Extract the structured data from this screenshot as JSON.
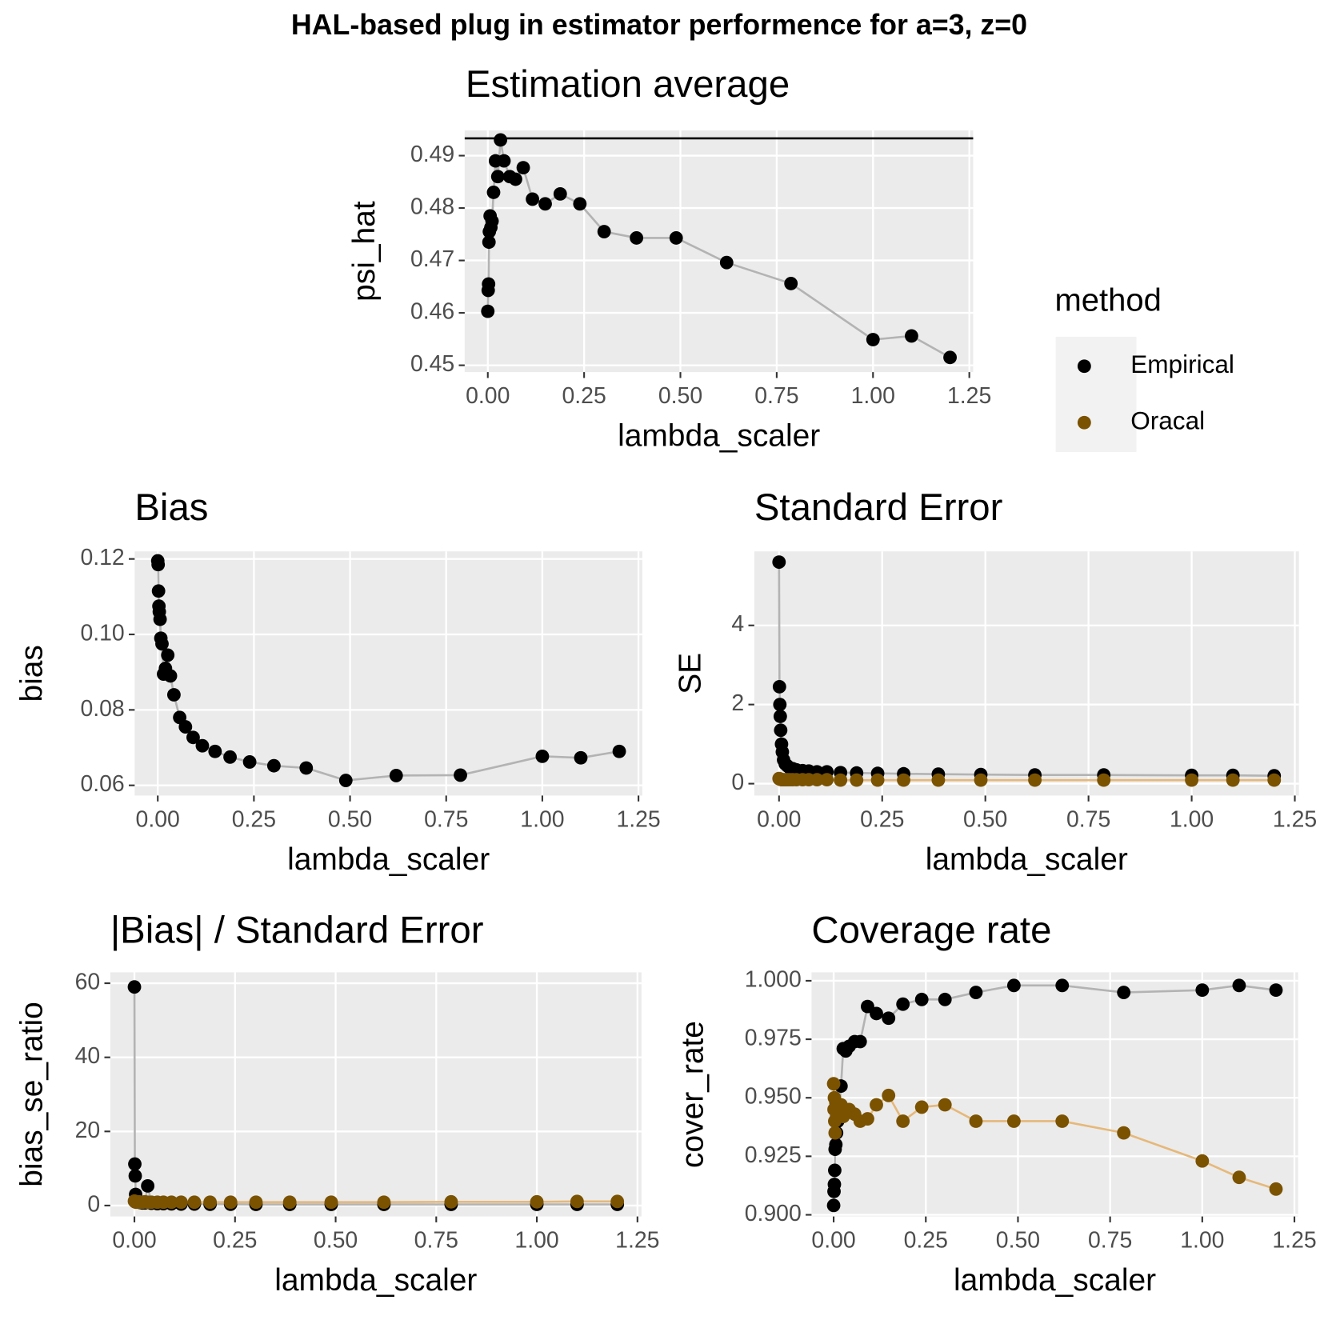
{
  "title": "HAL-based plug in estimator performence for a=3, z=0",
  "legend_title": "method",
  "chart_data": [
    {
      "type": "line",
      "title": "Estimation average",
      "x_label": "lambda_scaler",
      "y_label": "psi_hat",
      "x": [
        0,
        0.001,
        0.002,
        0.003,
        0.004,
        0.006,
        0.008,
        0.011,
        0.015,
        0.02,
        0.026,
        0.033,
        0.042,
        0.057,
        0.072,
        0.092,
        0.116,
        0.149,
        0.188,
        0.239,
        0.302,
        0.386,
        0.489,
        0.62,
        0.787,
        1.0,
        1.1,
        1.2
      ],
      "series": [
        {
          "name": "Empirical",
          "color": "#000000",
          "line_color": "#b3b3b3",
          "values": [
            0.4603,
            0.4643,
            0.4655,
            0.4735,
            0.4755,
            0.4785,
            0.4763,
            0.4775,
            0.483,
            0.489,
            0.486,
            0.493,
            0.489,
            0.486,
            0.4855,
            0.4877,
            0.4817,
            0.4808,
            0.4827,
            0.4808,
            0.4755,
            0.4743,
            0.4743,
            0.4696,
            0.4656,
            0.4549,
            0.4556,
            0.4515
          ]
        }
      ],
      "hline": 0.4933,
      "hline_color": "#000000",
      "xlim": [
        -0.06,
        1.26
      ],
      "ylim": [
        0.4487,
        0.4948
      ],
      "xticks": [
        {
          "value": 0,
          "label": "0.00"
        },
        0.25,
        {
          "value": 0.5,
          "label": "0.50"
        },
        0.75,
        {
          "value": 1,
          "label": "1.00"
        },
        1.25
      ],
      "yticks": [
        0.45,
        0.46,
        0.47,
        0.48,
        0.49
      ],
      "grid": true
    },
    {
      "type": "line",
      "title": "Bias",
      "x_label": "lambda_scaler",
      "y_label": "bias",
      "x": [
        0,
        0.001,
        0.002,
        0.003,
        0.004,
        0.006,
        0.008,
        0.011,
        0.015,
        0.02,
        0.026,
        0.033,
        0.042,
        0.057,
        0.072,
        0.092,
        0.116,
        0.149,
        0.188,
        0.239,
        0.302,
        0.386,
        0.489,
        0.62,
        0.787,
        1.0,
        1.1,
        1.2
      ],
      "series": [
        {
          "name": "Empirical",
          "color": "#000000",
          "line_color": "#b3b3b3",
          "values": [
            0.1195,
            0.1185,
            0.1115,
            0.1075,
            0.106,
            0.104,
            0.099,
            0.0975,
            0.0895,
            0.091,
            0.0945,
            0.089,
            0.084,
            0.078,
            0.0755,
            0.0727,
            0.0705,
            0.069,
            0.0675,
            0.0662,
            0.0652,
            0.0646,
            0.0613,
            0.0626,
            0.0627,
            0.0677,
            0.0673,
            0.069
          ]
        }
      ],
      "xlim": [
        -0.06,
        1.26
      ],
      "ylim": [
        0.0573,
        0.122
      ],
      "xticks": [
        {
          "value": 0,
          "label": "0.00"
        },
        0.25,
        {
          "value": 0.5,
          "label": "0.50"
        },
        0.75,
        {
          "value": 1,
          "label": "1.00"
        },
        1.25
      ],
      "yticks": [
        0.06,
        0.08,
        {
          "value": 0.1,
          "label": "0.10"
        },
        0.12
      ],
      "grid": true
    },
    {
      "type": "line",
      "title": "Standard Error",
      "x_label": "lambda_scaler",
      "y_label": "SE",
      "x": [
        0,
        0.001,
        0.002,
        0.003,
        0.004,
        0.006,
        0.008,
        0.011,
        0.015,
        0.02,
        0.026,
        0.033,
        0.042,
        0.057,
        0.072,
        0.092,
        0.116,
        0.149,
        0.188,
        0.239,
        0.302,
        0.386,
        0.489,
        0.62,
        0.787,
        1.0,
        1.1,
        1.2
      ],
      "series": [
        {
          "name": "Empirical",
          "color": "#000000",
          "line_color": "#b3b3b3",
          "values": [
            5.6,
            2.45,
            2.0,
            1.7,
            1.35,
            1.0,
            0.8,
            0.6,
            0.5,
            0.45,
            0.4,
            0.38,
            0.35,
            0.33,
            0.32,
            0.3,
            0.3,
            0.28,
            0.27,
            0.26,
            0.25,
            0.24,
            0.23,
            0.22,
            0.22,
            0.21,
            0.21,
            0.2
          ]
        },
        {
          "name": "Oracal",
          "color": "#7a5200",
          "line_color": "#e6b87a",
          "values": [
            0.13,
            0.12,
            0.12,
            0.11,
            0.11,
            0.1,
            0.1,
            0.1,
            0.1,
            0.1,
            0.1,
            0.1,
            0.1,
            0.1,
            0.1,
            0.1,
            0.1,
            0.09,
            0.09,
            0.09,
            0.09,
            0.09,
            0.09,
            0.09,
            0.09,
            0.09,
            0.09,
            0.09
          ]
        }
      ],
      "xlim": [
        -0.06,
        1.26
      ],
      "ylim": [
        -0.3,
        5.87
      ],
      "xticks": [
        {
          "value": 0,
          "label": "0.00"
        },
        0.25,
        {
          "value": 0.5,
          "label": "0.50"
        },
        0.75,
        {
          "value": 1,
          "label": "1.00"
        },
        1.25
      ],
      "yticks": [
        0,
        2,
        4
      ],
      "grid": true
    },
    {
      "type": "line",
      "title": "|Bias| / Standard Error",
      "x_label": "lambda_scaler",
      "y_label": "bias_se_ratio",
      "x": [
        0,
        0.001,
        0.002,
        0.003,
        0.004,
        0.006,
        0.008,
        0.011,
        0.015,
        0.02,
        0.026,
        0.033,
        0.042,
        0.057,
        0.072,
        0.092,
        0.116,
        0.149,
        0.188,
        0.239,
        0.302,
        0.386,
        0.489,
        0.62,
        0.787,
        1.0,
        1.1,
        1.2
      ],
      "series": [
        {
          "name": "Empirical",
          "color": "#000000",
          "line_color": "#b3b3b3",
          "values": [
            59,
            11.2,
            8,
            3,
            1.8,
            1.2,
            1.0,
            0.9,
            0.8,
            0.7,
            0.7,
            5.3,
            0.6,
            0.5,
            0.5,
            0.45,
            0.4,
            0.4,
            0.35,
            0.35,
            0.3,
            0.3,
            0.3,
            0.3,
            0.3,
            0.3,
            0.3,
            0.3
          ]
        },
        {
          "name": "Oracal",
          "color": "#7a5200",
          "line_color": "#e6b87a",
          "values": [
            1.2,
            1.1,
            1.0,
            1.0,
            0.9,
            1.0,
            0.9,
            1.0,
            0.9,
            0.9,
            1.0,
            0.9,
            0.9,
            0.9,
            0.9,
            0.9,
            0.9,
            0.9,
            0.9,
            0.9,
            0.9,
            0.9,
            0.9,
            0.9,
            1.0,
            1.0,
            1.1,
            1.1
          ]
        }
      ],
      "xlim": [
        -0.06,
        1.26
      ],
      "ylim": [
        -2.95,
        62.95
      ],
      "xticks": [
        {
          "value": 0,
          "label": "0.00"
        },
        0.25,
        {
          "value": 0.5,
          "label": "0.50"
        },
        0.75,
        {
          "value": 1,
          "label": "1.00"
        },
        1.25
      ],
      "yticks": [
        0,
        20,
        40,
        60
      ],
      "grid": true
    },
    {
      "type": "line",
      "title": "Coverage rate",
      "x_label": "lambda_scaler",
      "y_label": "cover_rate",
      "x": [
        0,
        0.001,
        0.002,
        0.003,
        0.004,
        0.006,
        0.008,
        0.011,
        0.015,
        0.02,
        0.026,
        0.033,
        0.042,
        0.057,
        0.072,
        0.092,
        0.116,
        0.149,
        0.188,
        0.239,
        0.302,
        0.386,
        0.489,
        0.62,
        0.787,
        1.0,
        1.1,
        1.2
      ],
      "series": [
        {
          "name": "Empirical",
          "color": "#000000",
          "line_color": "#b3b3b3",
          "values": [
            0.904,
            0.91,
            0.913,
            0.919,
            0.928,
            0.93,
            0.935,
            0.94,
            0.945,
            0.955,
            0.971,
            0.97,
            0.972,
            0.974,
            0.974,
            0.989,
            0.986,
            0.984,
            0.99,
            0.992,
            0.992,
            0.995,
            0.998,
            0.998,
            0.995,
            0.996,
            0.998,
            0.996
          ]
        },
        {
          "name": "Oracal",
          "color": "#7a5200",
          "line_color": "#e6b87a",
          "values": [
            0.956,
            0.945,
            0.95,
            0.94,
            0.935,
            0.948,
            0.942,
            0.946,
            0.944,
            0.947,
            0.942,
            0.944,
            0.945,
            0.943,
            0.94,
            0.941,
            0.947,
            0.951,
            0.94,
            0.946,
            0.947,
            0.94,
            0.94,
            0.94,
            0.935,
            0.923,
            0.916,
            0.911
          ]
        }
      ],
      "xlim": [
        -0.06,
        1.26
      ],
      "ylim": [
        0.8993,
        1.0036
      ],
      "xticks": [
        {
          "value": 0,
          "label": "0.00"
        },
        0.25,
        {
          "value": 0.5,
          "label": "0.50"
        },
        0.75,
        {
          "value": 1,
          "label": "1.00"
        },
        1.25
      ],
      "yticks": [
        {
          "value": 0.9,
          "label": "0.900"
        },
        0.925,
        {
          "value": 0.95,
          "label": "0.950"
        },
        0.975,
        {
          "value": 1,
          "label": "1.000"
        }
      ],
      "grid": true
    }
  ]
}
